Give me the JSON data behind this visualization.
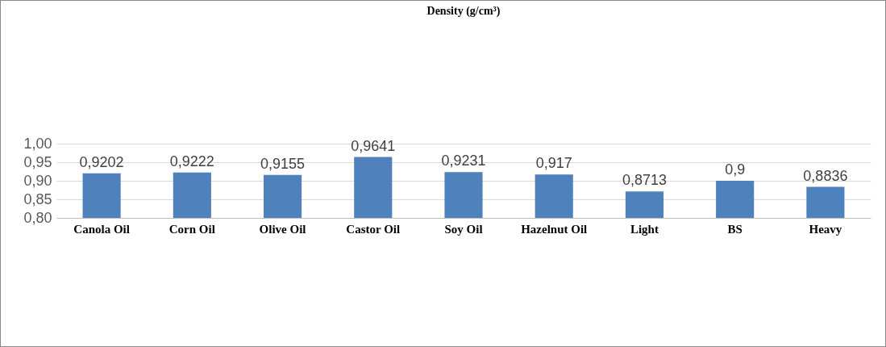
{
  "chart_data": {
    "type": "bar",
    "title": "Density (g/cm³)",
    "categories": [
      "Canola Oil",
      "Corn Oil",
      "Olive Oil",
      "Castor Oil",
      "Soy Oil",
      "Hazelnut Oil",
      "Light",
      "BS",
      "Heavy"
    ],
    "values": [
      0.9202,
      0.9222,
      0.9155,
      0.9641,
      0.9231,
      0.917,
      0.8713,
      0.9,
      0.8836
    ],
    "value_labels": [
      "0,9202",
      "0,9222",
      "0,9155",
      "0,9641",
      "0,9231",
      "0,917",
      "0,8713",
      "0,9",
      "0,8836"
    ],
    "color": "#4f81bd",
    "ylim": [
      0.8,
      1.0
    ],
    "yticks": [
      {
        "value": 0.8,
        "label": "0,80"
      },
      {
        "value": 0.85,
        "label": "0,85"
      },
      {
        "value": 0.9,
        "label": "0,90"
      },
      {
        "value": 0.95,
        "label": "0,95"
      },
      {
        "value": 1.0,
        "label": "1,00"
      }
    ],
    "grid": "y"
  }
}
